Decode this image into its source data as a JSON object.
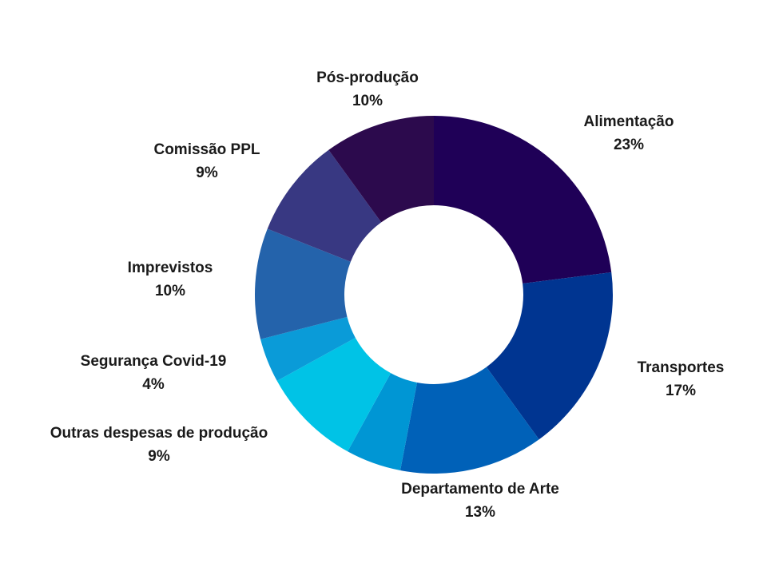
{
  "chart_data": {
    "type": "pie",
    "variant": "donut",
    "title": "",
    "start_angle_deg": 0,
    "direction": "clockwise",
    "slices": [
      {
        "label": "Alimentação",
        "value_label": "23%",
        "value": 23,
        "color": "#1f0057"
      },
      {
        "label": "Transportes",
        "value_label": "17%",
        "value": 17,
        "color": "#003591"
      },
      {
        "label": "Departamento de Arte",
        "value_label": "13%",
        "value": 13,
        "color": "#0061b8"
      },
      {
        "label": "",
        "value_label": "",
        "value": 5,
        "color": "#0096d4"
      },
      {
        "label": "Outras despesas de produção",
        "value_label": "9%",
        "value": 9,
        "color": "#00c3e6"
      },
      {
        "label": "Segurança Covid-19",
        "value_label": "4%",
        "value": 4,
        "color": "#0a9bd8"
      },
      {
        "label": "Imprevistos",
        "value_label": "10%",
        "value": 10,
        "color": "#2463ab"
      },
      {
        "label": "Comissão PPL",
        "value_label": "9%",
        "value": 9,
        "color": "#383882"
      },
      {
        "label": "Pós-produção",
        "value_label": "10%",
        "value": 10,
        "color": "#2c0a4d"
      }
    ]
  }
}
